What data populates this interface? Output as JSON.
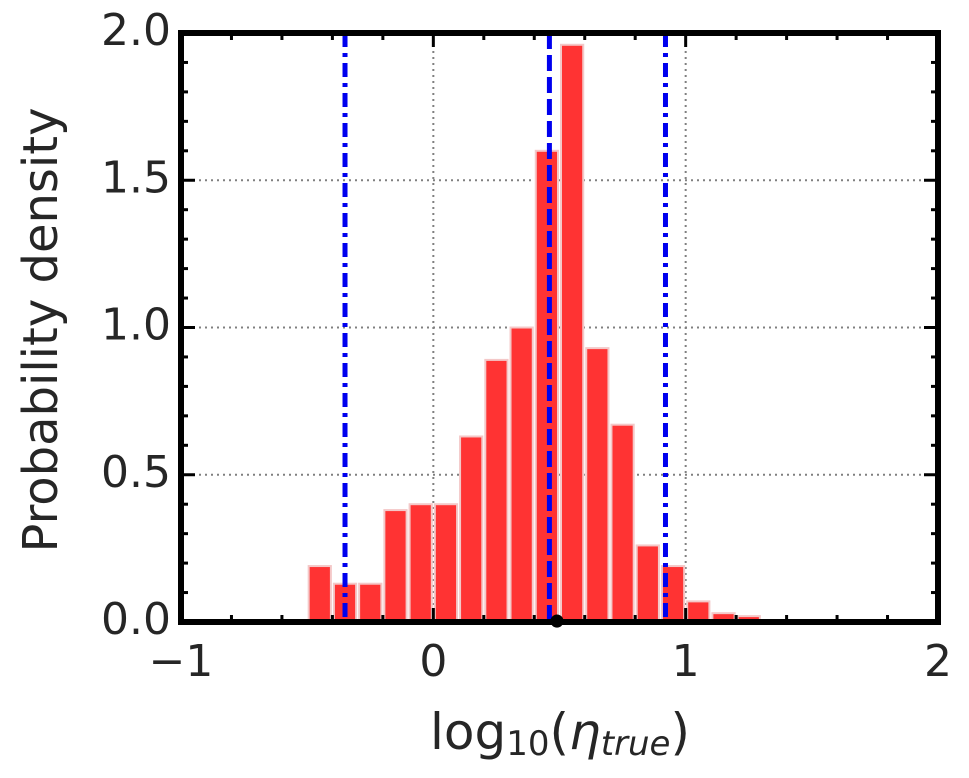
{
  "chart_data": {
    "type": "histogram",
    "ylabel": "Probability density",
    "xlabel": [
      "log",
      "10",
      "(",
      "η",
      "true",
      ")"
    ],
    "bins": [
      -0.5,
      -0.4,
      -0.3,
      -0.2,
      -0.1,
      0.0,
      0.1,
      0.2,
      0.3,
      0.4,
      0.5,
      0.6,
      0.7,
      0.8,
      0.9,
      1.0,
      1.1,
      1.2,
      1.3
    ],
    "values": [
      0.19,
      0.13,
      0.13,
      0.38,
      0.4,
      0.4,
      0.63,
      0.89,
      1.0,
      1.6,
      1.96,
      0.93,
      0.67,
      0.26,
      0.19,
      0.07,
      0.03,
      0.02
    ],
    "color": "#ff3333",
    "edgecolor": "#f4c8c8",
    "vlines": [
      {
        "value": -0.35,
        "color": "#0000ee",
        "style": "dashdot"
      },
      {
        "value": 0.46,
        "color": "#0000ee",
        "style": "dashed"
      },
      {
        "value": 0.49,
        "color": "#000000",
        "style": "dotted"
      },
      {
        "value": 0.92,
        "color": "#0000ee",
        "style": "dashdot"
      }
    ],
    "xlim": [
      -1,
      2
    ],
    "ylim": [
      0,
      2
    ],
    "xticks": [
      {
        "value": -1,
        "label": "−1"
      },
      0,
      1,
      2
    ],
    "yticks": [
      {
        "value": 0,
        "label": "0.0"
      },
      0.5,
      {
        "value": 1,
        "label": "1.0"
      },
      1.5,
      {
        "value": 2,
        "label": "2.0"
      }
    ],
    "xminorticks": [
      -0.8,
      -0.6,
      -0.4,
      -0.2,
      0.2,
      0.4,
      0.6,
      0.8,
      1.2,
      1.4,
      1.6,
      1.8
    ],
    "yminorticks": [
      0.1,
      0.2,
      0.3,
      0.4,
      0.6,
      0.7,
      0.8,
      0.9,
      1.1,
      1.2,
      1.3,
      1.4,
      1.6,
      1.7,
      1.8,
      1.9
    ],
    "grid": true
  }
}
